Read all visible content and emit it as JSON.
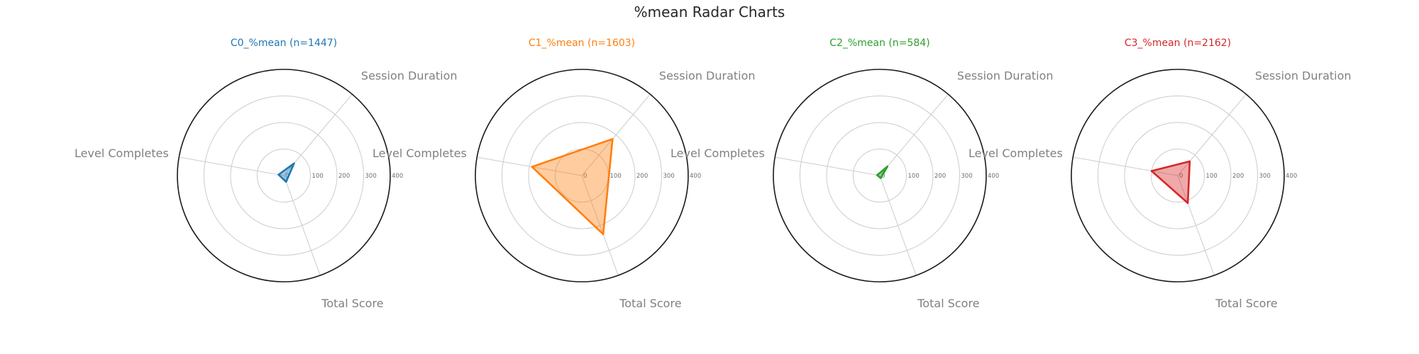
{
  "title": "%mean Radar Charts",
  "chart_data": [
    {
      "type": "radar",
      "title": "C0_%mean (n=1447)",
      "color": "#1f77b4",
      "axes": [
        "Session Duration",
        "Level Completes",
        "Total Score"
      ],
      "values": [
        60,
        20,
        25
      ],
      "rlim": [
        0,
        400
      ],
      "ticks": [
        0,
        100,
        200,
        300,
        400
      ],
      "grid": true
    },
    {
      "type": "radar",
      "title": "C1_%mean (n=1603)",
      "color": "#ff7f0e",
      "axes": [
        "Session Duration",
        "Level Completes",
        "Total Score"
      ],
      "values": [
        180,
        190,
        235
      ],
      "rlim": [
        0,
        400
      ],
      "ticks": [
        0,
        100,
        200,
        300,
        400
      ],
      "grid": true
    },
    {
      "type": "radar",
      "title": "C2_%mean (n=584)",
      "color": "#2ca02c",
      "axes": [
        "Session Duration",
        "Level Completes",
        "Total Score"
      ],
      "values": [
        45,
        10,
        10
      ],
      "rlim": [
        0,
        400
      ],
      "ticks": [
        0,
        100,
        200,
        300,
        400
      ],
      "grid": true
    },
    {
      "type": "radar",
      "title": "C3_%mean (n=2162)",
      "color": "#d62728",
      "axes": [
        "Session Duration",
        "Level Completes",
        "Total Score"
      ],
      "values": [
        70,
        100,
        110
      ],
      "rlim": [
        0,
        400
      ],
      "ticks": [
        0,
        100,
        200,
        300,
        400
      ],
      "grid": true
    }
  ]
}
